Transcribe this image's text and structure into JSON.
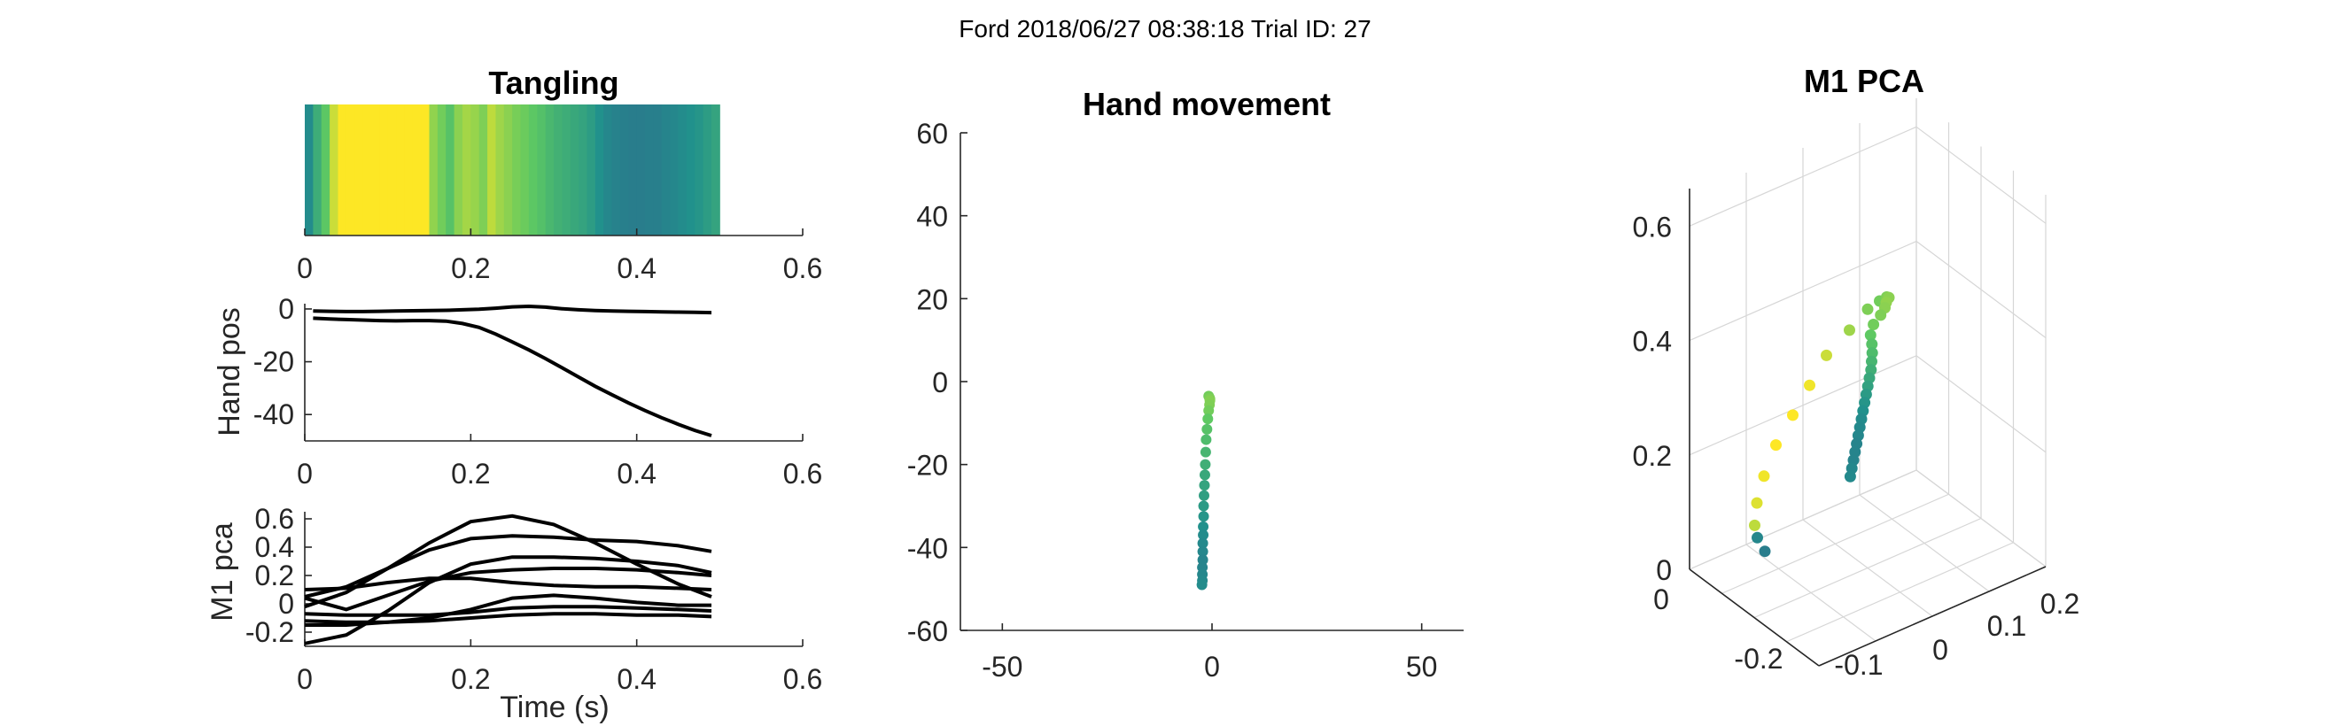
{
  "figure": {
    "suptitle": "Ford 2018/06/27 08:38:18 Trial ID: 27"
  },
  "colors": {
    "viridis": [
      "#440154",
      "#3b528b",
      "#21918c",
      "#5ec962",
      "#fde725"
    ],
    "trace": "#000000",
    "axis": "#262626",
    "grid": "#d6d6d6"
  },
  "chart_data": [
    {
      "id": "tangling",
      "type": "heatmap",
      "title": "Tangling",
      "xlim": [
        0,
        0.6
      ],
      "xticks": [
        "0",
        "0.2",
        "0.4",
        "0.6"
      ],
      "colormap": "viridis",
      "x": [
        0.0,
        0.01,
        0.02,
        0.03,
        0.04,
        0.05,
        0.06,
        0.07,
        0.08,
        0.09,
        0.1,
        0.11,
        0.12,
        0.13,
        0.14,
        0.15,
        0.16,
        0.17,
        0.18,
        0.19,
        0.2,
        0.21,
        0.22,
        0.23,
        0.24,
        0.25,
        0.26,
        0.27,
        0.28,
        0.29,
        0.3,
        0.31,
        0.32,
        0.33,
        0.34,
        0.35,
        0.36,
        0.37,
        0.38,
        0.39,
        0.4,
        0.41,
        0.42,
        0.43,
        0.44,
        0.45,
        0.46,
        0.47,
        0.48,
        0.49
      ],
      "values": [
        0.48,
        0.62,
        0.74,
        0.92,
        1.0,
        1.0,
        1.0,
        1.0,
        1.0,
        1.0,
        1.0,
        1.0,
        1.0,
        1.0,
        1.0,
        0.83,
        0.78,
        0.72,
        0.82,
        0.86,
        0.84,
        0.8,
        0.9,
        0.85,
        0.82,
        0.79,
        0.77,
        0.74,
        0.71,
        0.67,
        0.64,
        0.62,
        0.6,
        0.58,
        0.55,
        0.5,
        0.46,
        0.44,
        0.43,
        0.42,
        0.42,
        0.43,
        0.43,
        0.45,
        0.46,
        0.48,
        0.5,
        0.52,
        0.55,
        0.58
      ]
    },
    {
      "id": "hand_pos",
      "type": "line",
      "ylabel": "Hand pos",
      "xlim": [
        0,
        0.6
      ],
      "ylim": [
        -50,
        2
      ],
      "xticks": [
        "0",
        "0.2",
        "0.4",
        "0.6"
      ],
      "yticks": [
        "0",
        "-20",
        "-40"
      ],
      "x": [
        0.01,
        0.03,
        0.05,
        0.07,
        0.09,
        0.11,
        0.13,
        0.15,
        0.17,
        0.19,
        0.21,
        0.23,
        0.25,
        0.27,
        0.29,
        0.31,
        0.33,
        0.35,
        0.37,
        0.39,
        0.41,
        0.43,
        0.45,
        0.47,
        0.49
      ],
      "series": [
        {
          "values": [
            -0.8,
            -0.9,
            -1.0,
            -1.0,
            -0.9,
            -0.8,
            -0.7,
            -0.6,
            -0.5,
            -0.3,
            -0.1,
            0.3,
            0.8,
            1.0,
            0.7,
            0.1,
            -0.3,
            -0.6,
            -0.8,
            -0.9,
            -1.0,
            -1.1,
            -1.2,
            -1.3,
            -1.4
          ]
        },
        {
          "values": [
            -3.5,
            -3.8,
            -4.0,
            -4.2,
            -4.4,
            -4.5,
            -4.4,
            -4.4,
            -4.6,
            -5.5,
            -7.0,
            -9.5,
            -12.5,
            -15.5,
            -18.8,
            -22.3,
            -25.8,
            -29.3,
            -32.5,
            -35.6,
            -38.5,
            -41.2,
            -43.7,
            -46.0,
            -48.0
          ]
        }
      ]
    },
    {
      "id": "m1_pca_traces",
      "type": "line",
      "xlabel": "Time (s)",
      "ylabel": "M1 pca",
      "xlim": [
        0,
        0.6
      ],
      "ylim": [
        -0.3,
        0.65
      ],
      "xticks": [
        "0",
        "0.2",
        "0.4",
        "0.6"
      ],
      "yticks": [
        "0.6",
        "0.4",
        "0.2",
        "0",
        "-0.2"
      ],
      "x": [
        0.0,
        0.05,
        0.1,
        0.15,
        0.2,
        0.25,
        0.3,
        0.35,
        0.4,
        0.45,
        0.49
      ],
      "series": [
        {
          "values": [
            -0.02,
            0.08,
            0.25,
            0.43,
            0.58,
            0.62,
            0.56,
            0.43,
            0.28,
            0.14,
            0.05
          ]
        },
        {
          "values": [
            0.05,
            0.12,
            0.25,
            0.38,
            0.46,
            0.48,
            0.47,
            0.45,
            0.44,
            0.41,
            0.37
          ]
        },
        {
          "values": [
            -0.28,
            -0.22,
            -0.05,
            0.15,
            0.28,
            0.33,
            0.33,
            0.32,
            0.3,
            0.27,
            0.22
          ]
        },
        {
          "values": [
            0.1,
            0.11,
            0.15,
            0.18,
            0.18,
            0.15,
            0.13,
            0.12,
            0.12,
            0.11,
            0.1
          ]
        },
        {
          "values": [
            0.04,
            -0.04,
            0.06,
            0.16,
            0.22,
            0.24,
            0.25,
            0.25,
            0.24,
            0.22,
            0.2
          ]
        },
        {
          "values": [
            -0.12,
            -0.13,
            -0.13,
            -0.1,
            -0.04,
            0.04,
            0.06,
            0.04,
            0.01,
            -0.01,
            -0.01
          ]
        },
        {
          "values": [
            -0.07,
            -0.08,
            -0.08,
            -0.08,
            -0.06,
            -0.03,
            -0.02,
            -0.02,
            -0.03,
            -0.04,
            -0.05
          ]
        },
        {
          "values": [
            -0.15,
            -0.15,
            -0.13,
            -0.12,
            -0.1,
            -0.08,
            -0.07,
            -0.07,
            -0.08,
            -0.08,
            -0.09
          ]
        }
      ]
    },
    {
      "id": "hand_movement",
      "type": "scatter",
      "title": "Hand movement",
      "xlim": [
        -60,
        60
      ],
      "ylim": [
        -60,
        60
      ],
      "xticks": [
        "-50",
        "0",
        "50"
      ],
      "yticks": [
        "60",
        "40",
        "20",
        "0",
        "-20",
        "-40",
        "-60"
      ],
      "colormap": "viridis",
      "x": [
        -0.8,
        -0.6,
        -0.5,
        -0.5,
        -0.6,
        -0.8,
        -1.0,
        -1.2,
        -1.4,
        -1.5,
        -1.6,
        -1.7,
        -1.8,
        -1.9,
        -2.0,
        -2.0,
        -2.1,
        -2.1,
        -2.2,
        -2.2,
        -2.2,
        -2.3,
        -2.3,
        -2.3,
        -2.4
      ],
      "y": [
        -3.5,
        -3.9,
        -4.2,
        -4.6,
        -5.6,
        -7.0,
        -9.0,
        -11.5,
        -14.0,
        -17.0,
        -20.0,
        -22.5,
        -25.0,
        -27.5,
        -30.0,
        -32.5,
        -35.0,
        -37.0,
        -39.0,
        -41.0,
        -43.0,
        -44.8,
        -46.5,
        -48.0,
        -49.0
      ],
      "color_values": [
        0.78,
        0.79,
        0.8,
        0.81,
        0.8,
        0.78,
        0.75,
        0.72,
        0.69,
        0.66,
        0.63,
        0.6,
        0.58,
        0.56,
        0.54,
        0.52,
        0.5,
        0.48,
        0.47,
        0.46,
        0.45,
        0.45,
        0.46,
        0.47,
        0.48
      ]
    },
    {
      "id": "m1_pca_3d",
      "type": "scatter",
      "title": "M1 PCA",
      "zlim": [
        0,
        0.65
      ],
      "zticks": [
        "0",
        "0.2",
        "0.4",
        "0.6"
      ],
      "xticks": [
        "0",
        "-0.2"
      ],
      "yticks": [
        "-0.1",
        "0",
        "0.1",
        "0.2"
      ],
      "colormap": "viridis",
      "x": [
        -0.2,
        -0.195,
        -0.185,
        -0.17,
        -0.15,
        -0.125,
        -0.095,
        -0.065,
        -0.035,
        -0.005,
        0.02,
        0.045,
        0.065,
        0.08,
        0.09,
        0.095,
        0.097,
        0.096,
        0.093,
        0.088,
        0.082,
        0.075,
        0.068,
        0.06,
        0.052,
        0.044,
        0.036,
        0.028,
        0.02,
        0.012,
        0.004,
        -0.004,
        -0.012,
        -0.02,
        -0.028,
        -0.036
      ],
      "y": [
        0.08,
        0.07,
        0.06,
        0.05,
        0.04,
        0.03,
        0.02,
        0.01,
        0.0,
        -0.005,
        -0.01,
        -0.02,
        -0.03,
        -0.04,
        -0.05,
        -0.055,
        -0.06,
        -0.065,
        -0.065,
        -0.06,
        -0.055,
        -0.05,
        -0.045,
        -0.04,
        -0.035,
        -0.03,
        -0.025,
        -0.02,
        -0.015,
        -0.01,
        -0.005,
        0.0,
        0.005,
        0.01,
        0.015,
        0.02
      ],
      "z": [
        0.05,
        0.08,
        0.11,
        0.16,
        0.22,
        0.29,
        0.36,
        0.43,
        0.5,
        0.56,
        0.61,
        0.64,
        0.66,
        0.67,
        0.67,
        0.665,
        0.655,
        0.64,
        0.62,
        0.6,
        0.58,
        0.56,
        0.54,
        0.52,
        0.5,
        0.48,
        0.46,
        0.44,
        0.42,
        0.4,
        0.38,
        0.36,
        0.34,
        0.32,
        0.3,
        0.28
      ],
      "color_values": [
        0.42,
        0.46,
        0.9,
        0.95,
        0.98,
        1.0,
        1.0,
        0.98,
        0.92,
        0.85,
        0.8,
        0.78,
        0.8,
        0.82,
        0.83,
        0.82,
        0.8,
        0.78,
        0.75,
        0.72,
        0.69,
        0.66,
        0.63,
        0.6,
        0.57,
        0.54,
        0.52,
        0.5,
        0.48,
        0.47,
        0.46,
        0.45,
        0.45,
        0.45,
        0.46,
        0.47
      ]
    }
  ]
}
